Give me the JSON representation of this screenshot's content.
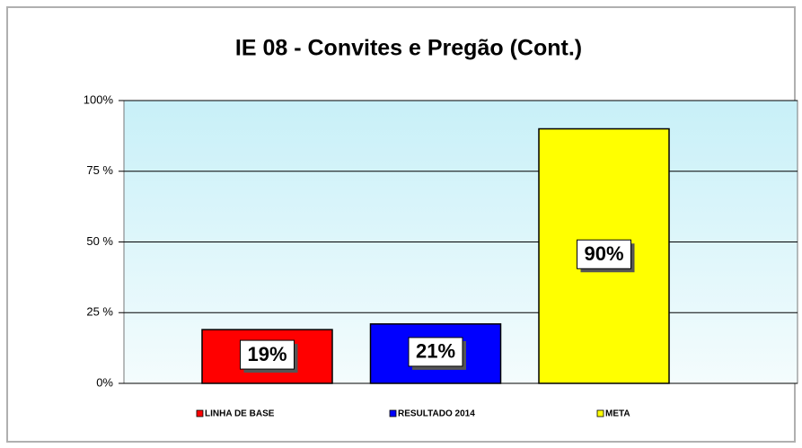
{
  "chart_data": {
    "type": "bar",
    "title": "IE 08 - Convites e Pregão (Cont.)",
    "categories": [
      "LINHA DE BASE",
      "RESULTADO 2014",
      "META"
    ],
    "values": [
      19,
      21,
      90
    ],
    "value_labels": [
      "19%",
      "21%",
      "90%"
    ],
    "colors": [
      "#ff0000",
      "#0000ff",
      "#ffff00"
    ],
    "ylim": [
      0,
      100
    ],
    "yticks": [
      {
        "value": 0,
        "label": "0%"
      },
      {
        "value": 25,
        "label": "25 %"
      },
      {
        "value": 50,
        "label": "50 %"
      },
      {
        "value": 75,
        "label": "75 %"
      },
      {
        "value": 100,
        "label": "100%"
      }
    ],
    "grid": true,
    "legend": "bottom"
  }
}
